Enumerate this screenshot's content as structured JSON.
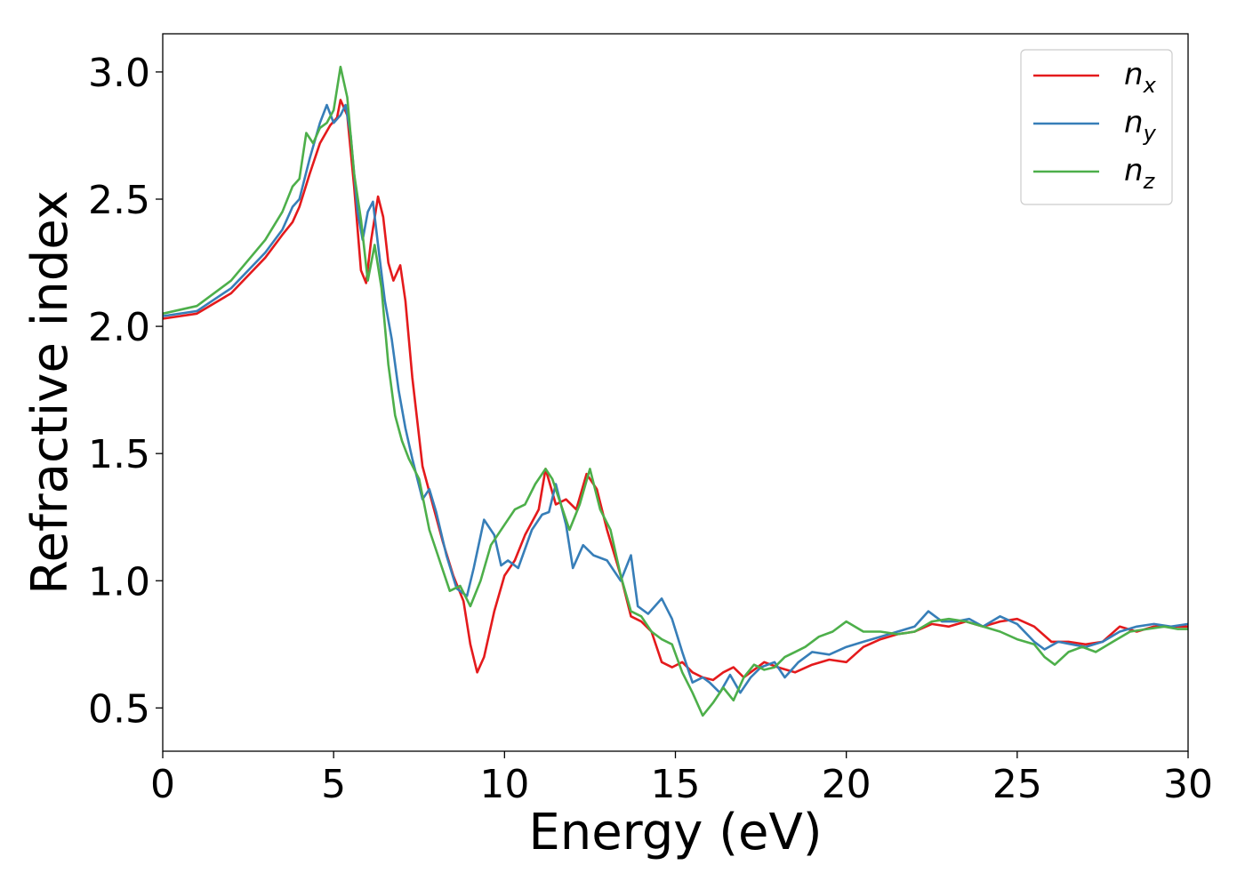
{
  "chart_data": {
    "type": "line",
    "title": "",
    "xlabel": "Energy (eV)",
    "ylabel": "Refractive index",
    "xlim": [
      0,
      30
    ],
    "ylim": [
      0.33,
      3.15
    ],
    "xticks": [
      0,
      5,
      10,
      15,
      20,
      25,
      30
    ],
    "xtick_labels": [
      "0",
      "5",
      "10",
      "15",
      "20",
      "25",
      "30"
    ],
    "yticks": [
      0.5,
      1.0,
      1.5,
      2.0,
      2.5,
      3.0
    ],
    "ytick_labels": [
      "0.5",
      "1.0",
      "1.5",
      "2.0",
      "2.5",
      "3.0"
    ],
    "grid": false,
    "legend_position": "top-right",
    "series": [
      {
        "name": "n_x",
        "legend_base": "n",
        "legend_sub": "x",
        "color": "#e41a1c",
        "points": [
          [
            0,
            2.03
          ],
          [
            1,
            2.05
          ],
          [
            2,
            2.13
          ],
          [
            3,
            2.27
          ],
          [
            3.5,
            2.36
          ],
          [
            3.8,
            2.41
          ],
          [
            4,
            2.47
          ],
          [
            4.3,
            2.6
          ],
          [
            4.6,
            2.72
          ],
          [
            4.9,
            2.79
          ],
          [
            5.1,
            2.82
          ],
          [
            5.2,
            2.89
          ],
          [
            5.4,
            2.83
          ],
          [
            5.6,
            2.55
          ],
          [
            5.8,
            2.22
          ],
          [
            5.95,
            2.17
          ],
          [
            6.1,
            2.34
          ],
          [
            6.3,
            2.51
          ],
          [
            6.45,
            2.43
          ],
          [
            6.6,
            2.25
          ],
          [
            6.75,
            2.18
          ],
          [
            6.95,
            2.24
          ],
          [
            7.1,
            2.1
          ],
          [
            7.3,
            1.8
          ],
          [
            7.6,
            1.45
          ],
          [
            7.9,
            1.3
          ],
          [
            8.2,
            1.15
          ],
          [
            8.5,
            1.02
          ],
          [
            8.8,
            0.92
          ],
          [
            9.0,
            0.75
          ],
          [
            9.2,
            0.64
          ],
          [
            9.4,
            0.7
          ],
          [
            9.7,
            0.88
          ],
          [
            10.0,
            1.02
          ],
          [
            10.3,
            1.08
          ],
          [
            10.6,
            1.18
          ],
          [
            11.0,
            1.28
          ],
          [
            11.2,
            1.44
          ],
          [
            11.5,
            1.3
          ],
          [
            11.8,
            1.32
          ],
          [
            12.1,
            1.28
          ],
          [
            12.4,
            1.42
          ],
          [
            12.7,
            1.36
          ],
          [
            13.0,
            1.2
          ],
          [
            13.4,
            1.02
          ],
          [
            13.7,
            0.86
          ],
          [
            14.0,
            0.84
          ],
          [
            14.3,
            0.8
          ],
          [
            14.6,
            0.68
          ],
          [
            14.9,
            0.66
          ],
          [
            15.2,
            0.68
          ],
          [
            15.5,
            0.64
          ],
          [
            15.8,
            0.62
          ],
          [
            16.1,
            0.61
          ],
          [
            16.4,
            0.64
          ],
          [
            16.7,
            0.66
          ],
          [
            17.0,
            0.62
          ],
          [
            17.3,
            0.65
          ],
          [
            17.6,
            0.68
          ],
          [
            18.0,
            0.66
          ],
          [
            18.5,
            0.64
          ],
          [
            19.0,
            0.67
          ],
          [
            19.5,
            0.69
          ],
          [
            20.0,
            0.68
          ],
          [
            20.5,
            0.74
          ],
          [
            21.0,
            0.77
          ],
          [
            21.5,
            0.79
          ],
          [
            22.0,
            0.8
          ],
          [
            22.5,
            0.83
          ],
          [
            23.0,
            0.82
          ],
          [
            23.5,
            0.84
          ],
          [
            24.0,
            0.82
          ],
          [
            24.5,
            0.84
          ],
          [
            25.0,
            0.85
          ],
          [
            25.5,
            0.82
          ],
          [
            26.0,
            0.76
          ],
          [
            26.5,
            0.76
          ],
          [
            27.0,
            0.75
          ],
          [
            27.5,
            0.76
          ],
          [
            28.0,
            0.82
          ],
          [
            28.5,
            0.8
          ],
          [
            29.0,
            0.82
          ],
          [
            29.5,
            0.82
          ],
          [
            30.0,
            0.82
          ]
        ]
      },
      {
        "name": "n_y",
        "legend_base": "n",
        "legend_sub": "y",
        "color": "#377eb8",
        "points": [
          [
            0,
            2.04
          ],
          [
            1,
            2.06
          ],
          [
            2,
            2.15
          ],
          [
            3,
            2.29
          ],
          [
            3.5,
            2.38
          ],
          [
            3.8,
            2.47
          ],
          [
            4,
            2.5
          ],
          [
            4.3,
            2.66
          ],
          [
            4.6,
            2.8
          ],
          [
            4.8,
            2.87
          ],
          [
            5.0,
            2.8
          ],
          [
            5.2,
            2.83
          ],
          [
            5.35,
            2.87
          ],
          [
            5.5,
            2.75
          ],
          [
            5.7,
            2.45
          ],
          [
            5.85,
            2.34
          ],
          [
            6.0,
            2.45
          ],
          [
            6.15,
            2.49
          ],
          [
            6.3,
            2.32
          ],
          [
            6.5,
            2.1
          ],
          [
            6.7,
            1.95
          ],
          [
            6.9,
            1.75
          ],
          [
            7.1,
            1.6
          ],
          [
            7.3,
            1.48
          ],
          [
            7.6,
            1.32
          ],
          [
            7.8,
            1.36
          ],
          [
            8.0,
            1.27
          ],
          [
            8.3,
            1.1
          ],
          [
            8.6,
            0.97
          ],
          [
            8.9,
            0.94
          ],
          [
            9.1,
            1.05
          ],
          [
            9.4,
            1.24
          ],
          [
            9.7,
            1.18
          ],
          [
            9.9,
            1.06
          ],
          [
            10.1,
            1.08
          ],
          [
            10.4,
            1.05
          ],
          [
            10.8,
            1.2
          ],
          [
            11.1,
            1.26
          ],
          [
            11.3,
            1.27
          ],
          [
            11.5,
            1.38
          ],
          [
            11.8,
            1.22
          ],
          [
            12.0,
            1.05
          ],
          [
            12.3,
            1.14
          ],
          [
            12.6,
            1.1
          ],
          [
            13.0,
            1.08
          ],
          [
            13.4,
            1.0
          ],
          [
            13.7,
            1.1
          ],
          [
            13.9,
            0.9
          ],
          [
            14.2,
            0.87
          ],
          [
            14.6,
            0.93
          ],
          [
            14.9,
            0.85
          ],
          [
            15.2,
            0.72
          ],
          [
            15.5,
            0.6
          ],
          [
            15.8,
            0.62
          ],
          [
            16.0,
            0.6
          ],
          [
            16.3,
            0.56
          ],
          [
            16.6,
            0.63
          ],
          [
            16.9,
            0.56
          ],
          [
            17.2,
            0.62
          ],
          [
            17.5,
            0.66
          ],
          [
            17.9,
            0.68
          ],
          [
            18.2,
            0.62
          ],
          [
            18.6,
            0.68
          ],
          [
            19.0,
            0.72
          ],
          [
            19.5,
            0.71
          ],
          [
            20.0,
            0.74
          ],
          [
            20.5,
            0.76
          ],
          [
            21.0,
            0.78
          ],
          [
            21.5,
            0.8
          ],
          [
            22.0,
            0.82
          ],
          [
            22.4,
            0.88
          ],
          [
            22.8,
            0.84
          ],
          [
            23.2,
            0.84
          ],
          [
            23.6,
            0.85
          ],
          [
            24.0,
            0.82
          ],
          [
            24.5,
            0.86
          ],
          [
            25.0,
            0.83
          ],
          [
            25.5,
            0.76
          ],
          [
            25.8,
            0.73
          ],
          [
            26.2,
            0.76
          ],
          [
            26.6,
            0.75
          ],
          [
            27.0,
            0.74
          ],
          [
            27.5,
            0.76
          ],
          [
            28.0,
            0.8
          ],
          [
            28.5,
            0.82
          ],
          [
            29.0,
            0.83
          ],
          [
            29.5,
            0.82
          ],
          [
            30.0,
            0.83
          ]
        ]
      },
      {
        "name": "n_z",
        "legend_base": "n",
        "legend_sub": "z",
        "color": "#4daf4a",
        "points": [
          [
            0,
            2.05
          ],
          [
            1,
            2.08
          ],
          [
            2,
            2.18
          ],
          [
            3,
            2.34
          ],
          [
            3.5,
            2.45
          ],
          [
            3.8,
            2.55
          ],
          [
            4.0,
            2.58
          ],
          [
            4.2,
            2.76
          ],
          [
            4.4,
            2.72
          ],
          [
            4.6,
            2.78
          ],
          [
            4.8,
            2.8
          ],
          [
            5.0,
            2.85
          ],
          [
            5.2,
            3.02
          ],
          [
            5.4,
            2.9
          ],
          [
            5.6,
            2.6
          ],
          [
            5.8,
            2.42
          ],
          [
            6.0,
            2.18
          ],
          [
            6.2,
            2.32
          ],
          [
            6.4,
            2.15
          ],
          [
            6.6,
            1.85
          ],
          [
            6.8,
            1.65
          ],
          [
            7.0,
            1.55
          ],
          [
            7.2,
            1.48
          ],
          [
            7.5,
            1.4
          ],
          [
            7.8,
            1.2
          ],
          [
            8.1,
            1.08
          ],
          [
            8.4,
            0.96
          ],
          [
            8.7,
            0.98
          ],
          [
            9.0,
            0.9
          ],
          [
            9.3,
            1.0
          ],
          [
            9.6,
            1.14
          ],
          [
            10.0,
            1.22
          ],
          [
            10.3,
            1.28
          ],
          [
            10.6,
            1.3
          ],
          [
            10.9,
            1.38
          ],
          [
            11.2,
            1.44
          ],
          [
            11.4,
            1.4
          ],
          [
            11.6,
            1.32
          ],
          [
            11.9,
            1.2
          ],
          [
            12.2,
            1.3
          ],
          [
            12.5,
            1.44
          ],
          [
            12.8,
            1.28
          ],
          [
            13.1,
            1.2
          ],
          [
            13.4,
            1.02
          ],
          [
            13.7,
            0.88
          ],
          [
            14.0,
            0.86
          ],
          [
            14.3,
            0.8
          ],
          [
            14.6,
            0.77
          ],
          [
            14.9,
            0.75
          ],
          [
            15.2,
            0.64
          ],
          [
            15.5,
            0.56
          ],
          [
            15.8,
            0.47
          ],
          [
            16.1,
            0.52
          ],
          [
            16.4,
            0.58
          ],
          [
            16.7,
            0.53
          ],
          [
            17.0,
            0.62
          ],
          [
            17.3,
            0.67
          ],
          [
            17.6,
            0.65
          ],
          [
            17.9,
            0.66
          ],
          [
            18.2,
            0.7
          ],
          [
            18.5,
            0.72
          ],
          [
            18.8,
            0.74
          ],
          [
            19.2,
            0.78
          ],
          [
            19.6,
            0.8
          ],
          [
            20.0,
            0.84
          ],
          [
            20.5,
            0.8
          ],
          [
            21.0,
            0.8
          ],
          [
            21.5,
            0.79
          ],
          [
            22.0,
            0.8
          ],
          [
            22.5,
            0.84
          ],
          [
            23.0,
            0.85
          ],
          [
            23.5,
            0.84
          ],
          [
            24.0,
            0.82
          ],
          [
            24.5,
            0.8
          ],
          [
            25.0,
            0.77
          ],
          [
            25.5,
            0.75
          ],
          [
            25.8,
            0.7
          ],
          [
            26.1,
            0.67
          ],
          [
            26.5,
            0.72
          ],
          [
            26.9,
            0.74
          ],
          [
            27.3,
            0.72
          ],
          [
            27.8,
            0.76
          ],
          [
            28.3,
            0.8
          ],
          [
            28.8,
            0.81
          ],
          [
            29.3,
            0.82
          ],
          [
            29.7,
            0.81
          ],
          [
            30.0,
            0.81
          ]
        ]
      }
    ]
  }
}
